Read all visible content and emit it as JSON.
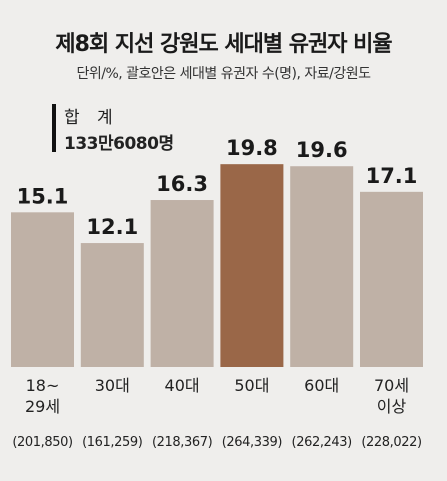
{
  "title": "제8회 지선 강원도 세대별 유권자 비율",
  "subtitle": "단위/%, 괄호안은 세대별 유권자 수(명), 자료/강원도",
  "total": {
    "label": "합 계",
    "value": "133만6080명"
  },
  "chart_data": {
    "type": "bar",
    "title": "제8회 지선 강원도 세대별 유권자 비율",
    "categories": [
      [
        "18~",
        "29세"
      ],
      [
        "30대"
      ],
      [
        "40대"
      ],
      [
        "50대"
      ],
      [
        "60대"
      ],
      [
        "70세",
        "이상"
      ]
    ],
    "values": [
      15.1,
      12.1,
      16.3,
      19.8,
      19.6,
      17.1
    ],
    "value_labels": [
      "15.1",
      "12.1",
      "16.3",
      "19.8",
      "19.6",
      "17.1"
    ],
    "counts": [
      "(201,850)",
      "(161,259)",
      "(218,367)",
      "(264,339)",
      "(262,243)",
      "(228,022)"
    ],
    "ylim": [
      0,
      20.5
    ],
    "grid": false,
    "colors": {
      "default": "#bfb1a6",
      "highlight": "#9a6748",
      "highlight_index": 3
    }
  }
}
